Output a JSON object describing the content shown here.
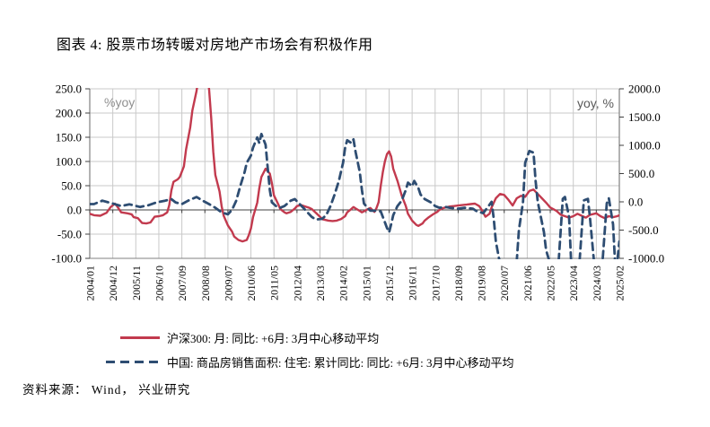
{
  "title": "图表 4: 股票市场转暖对房地产市场会有积极作用",
  "source": "资料来源： Wind， 兴业研究",
  "chart_data": {
    "type": "line",
    "grid": true,
    "legend_position": "bottom",
    "left_axis": {
      "label": "%yoy",
      "min": -100,
      "max": 250,
      "tick_labels": [
        "250.0",
        "200.0",
        "150.0",
        "100.0",
        "50.0",
        "0.0",
        "-50.0",
        "-100.0"
      ]
    },
    "right_axis": {
      "label": "yoy, %",
      "min": -1000,
      "max": 2000,
      "tick_labels": [
        "2000.0",
        "1500.0",
        "1000.0",
        "500.0",
        "0.0",
        "-500.0",
        "-1000.0"
      ]
    },
    "x_tick_labels": [
      "2004/01",
      "2004/12",
      "2005/11",
      "2006/10",
      "2007/09",
      "2008/08",
      "2009/07",
      "2010/06",
      "2011/05",
      "2012/04",
      "2013/03",
      "2014/02",
      "2015/01",
      "2015/12",
      "2016/11",
      "2017/10",
      "2018/09",
      "2019/08",
      "2020/07",
      "2021/06",
      "2022/05",
      "2023/04",
      "2024/03",
      "2025/02"
    ],
    "x_start": "2004/01",
    "x_end": "2025/02",
    "series": [
      {
        "name": "沪深300: 月: 同比: +6月: 3月中心移动平均",
        "axis": "left",
        "style": "solid",
        "color": "#c23a4e",
        "points": [
          [
            "2004/01",
            -8
          ],
          [
            "2004/03",
            -11
          ],
          [
            "2004/06",
            -12
          ],
          [
            "2004/09",
            -6
          ],
          [
            "2004/11",
            6
          ],
          [
            "2005/01",
            13
          ],
          [
            "2005/02",
            8
          ],
          [
            "2005/04",
            -5
          ],
          [
            "2005/07",
            -7
          ],
          [
            "2005/09",
            -9
          ],
          [
            "2005/10",
            -15
          ],
          [
            "2005/12",
            -17
          ],
          [
            "2006/02",
            -27
          ],
          [
            "2006/04",
            -28
          ],
          [
            "2006/06",
            -26
          ],
          [
            "2006/08",
            -14
          ],
          [
            "2006/10",
            -13
          ],
          [
            "2006/12",
            -11
          ],
          [
            "2007/02",
            -5
          ],
          [
            "2007/03",
            10
          ],
          [
            "2007/04",
            40
          ],
          [
            "2007/05",
            58
          ],
          [
            "2007/07",
            63
          ],
          [
            "2007/08",
            68
          ],
          [
            "2007/10",
            90
          ],
          [
            "2007/11",
            125
          ],
          [
            "2008/01",
            170
          ],
          [
            "2008/02",
            205
          ],
          [
            "2008/04",
            245
          ],
          [
            "2008/06",
            300
          ],
          [
            "2008/08",
            305
          ],
          [
            "2008/10",
            250
          ],
          [
            "2008/11",
            190
          ],
          [
            "2008/12",
            120
          ],
          [
            "2009/01",
            72
          ],
          [
            "2009/03",
            38
          ],
          [
            "2009/04",
            8
          ],
          [
            "2009/05",
            -12
          ],
          [
            "2009/07",
            -32
          ],
          [
            "2009/09",
            -45
          ],
          [
            "2009/10",
            -55
          ],
          [
            "2009/12",
            -62
          ],
          [
            "2010/02",
            -65
          ],
          [
            "2010/04",
            -62
          ],
          [
            "2010/05",
            -52
          ],
          [
            "2010/06",
            -38
          ],
          [
            "2010/07",
            -15
          ],
          [
            "2010/09",
            15
          ],
          [
            "2010/10",
            45
          ],
          [
            "2010/11",
            68
          ],
          [
            "2011/01",
            85
          ],
          [
            "2011/03",
            75
          ],
          [
            "2011/04",
            55
          ],
          [
            "2011/05",
            30
          ],
          [
            "2011/07",
            12
          ],
          [
            "2011/08",
            2
          ],
          [
            "2011/10",
            -5
          ],
          [
            "2011/11",
            -7
          ],
          [
            "2012/01",
            -4
          ],
          [
            "2012/03",
            3
          ],
          [
            "2012/04",
            8
          ],
          [
            "2012/06",
            10
          ],
          [
            "2012/08",
            7
          ],
          [
            "2012/10",
            4
          ],
          [
            "2012/11",
            2
          ],
          [
            "2013/01",
            -6
          ],
          [
            "2013/03",
            -14
          ],
          [
            "2013/04",
            -19
          ],
          [
            "2013/07",
            -22
          ],
          [
            "2013/09",
            -23
          ],
          [
            "2013/11",
            -22
          ],
          [
            "2014/01",
            -19
          ],
          [
            "2014/03",
            -13
          ],
          [
            "2014/04",
            -5
          ],
          [
            "2014/06",
            2
          ],
          [
            "2014/07",
            6
          ],
          [
            "2014/08",
            3
          ],
          [
            "2014/10",
            -2
          ],
          [
            "2014/11",
            -5
          ],
          [
            "2014/12",
            -3
          ],
          [
            "2015/02",
            2
          ],
          [
            "2015/03",
            4
          ],
          [
            "2015/04",
            0
          ],
          [
            "2015/05",
            -4
          ],
          [
            "2015/06",
            4
          ],
          [
            "2015/07",
            16
          ],
          [
            "2015/08",
            50
          ],
          [
            "2015/09",
            78
          ],
          [
            "2015/10",
            100
          ],
          [
            "2015/11",
            115
          ],
          [
            "2015/12",
            121
          ],
          [
            "2016/01",
            110
          ],
          [
            "2016/02",
            85
          ],
          [
            "2016/04",
            60
          ],
          [
            "2016/06",
            30
          ],
          [
            "2016/08",
            8
          ],
          [
            "2016/09",
            -8
          ],
          [
            "2016/11",
            -22
          ],
          [
            "2017/01",
            -31
          ],
          [
            "2017/02",
            -33
          ],
          [
            "2017/04",
            -28
          ],
          [
            "2017/05",
            -22
          ],
          [
            "2017/07",
            -15
          ],
          [
            "2017/09",
            -9
          ],
          [
            "2017/11",
            -4
          ],
          [
            "2017/12",
            0
          ],
          [
            "2018/02",
            4
          ],
          [
            "2018/05",
            7
          ],
          [
            "2018/07",
            8
          ],
          [
            "2018/09",
            9
          ],
          [
            "2018/11",
            10
          ],
          [
            "2019/01",
            11
          ],
          [
            "2019/03",
            12
          ],
          [
            "2019/05",
            13
          ],
          [
            "2019/07",
            8
          ],
          [
            "2019/08",
            2
          ],
          [
            "2019/10",
            -14
          ],
          [
            "2019/12",
            -8
          ],
          [
            "2020/01",
            5
          ],
          [
            "2020/03",
            24
          ],
          [
            "2020/05",
            33
          ],
          [
            "2020/07",
            31
          ],
          [
            "2020/09",
            21
          ],
          [
            "2020/11",
            9
          ],
          [
            "2021/01",
            24
          ],
          [
            "2021/03",
            29
          ],
          [
            "2021/05",
            27
          ],
          [
            "2021/07",
            39
          ],
          [
            "2021/09",
            42
          ],
          [
            "2021/11",
            33
          ],
          [
            "2022/01",
            24
          ],
          [
            "2022/03",
            15
          ],
          [
            "2022/05",
            5
          ],
          [
            "2022/08",
            -2
          ],
          [
            "2022/10",
            -10
          ],
          [
            "2022/12",
            -13
          ],
          [
            "2023/02",
            -16
          ],
          [
            "2023/04",
            -13
          ],
          [
            "2023/06",
            -8
          ],
          [
            "2023/08",
            -12
          ],
          [
            "2023/10",
            -16
          ],
          [
            "2023/12",
            -10
          ],
          [
            "2024/03",
            -7
          ],
          [
            "2024/05",
            -13
          ],
          [
            "2024/07",
            -17
          ],
          [
            "2024/09",
            -13
          ],
          [
            "2024/11",
            -15
          ],
          [
            "2025/01",
            -13
          ],
          [
            "2025/02",
            -11
          ]
        ]
      },
      {
        "name": "中国: 商品房销售面积: 住宅: 累计同比: 同比: +6月: 3月中心移动平均",
        "axis": "right",
        "style": "dashed",
        "color": "#2e4d72",
        "points": [
          [
            "2004/01",
            -40
          ],
          [
            "2004/03",
            -40
          ],
          [
            "2004/07",
            20
          ],
          [
            "2004/12",
            -30
          ],
          [
            "2005/04",
            -75
          ],
          [
            "2005/08",
            -45
          ],
          [
            "2006/01",
            -90
          ],
          [
            "2006/05",
            -60
          ],
          [
            "2006/09",
            -10
          ],
          [
            "2007/01",
            20
          ],
          [
            "2007/04",
            50
          ],
          [
            "2007/06",
            -10
          ],
          [
            "2007/09",
            -40
          ],
          [
            "2007/12",
            20
          ],
          [
            "2008/04",
            85
          ],
          [
            "2008/07",
            20
          ],
          [
            "2008/10",
            -40
          ],
          [
            "2009/01",
            -105
          ],
          [
            "2009/04",
            -185
          ],
          [
            "2009/07",
            -220
          ],
          [
            "2009/09",
            -140
          ],
          [
            "2009/11",
            20
          ],
          [
            "2010/01",
            290
          ],
          [
            "2010/03",
            530
          ],
          [
            "2010/04",
            690
          ],
          [
            "2010/06",
            820
          ],
          [
            "2010/07",
            960
          ],
          [
            "2010/09",
            1140
          ],
          [
            "2010/10",
            1040
          ],
          [
            "2010/11",
            1200
          ],
          [
            "2011/01",
            1010
          ],
          [
            "2011/02",
            610
          ],
          [
            "2011/03",
            210
          ],
          [
            "2011/04",
            -10
          ],
          [
            "2011/06",
            -75
          ],
          [
            "2011/08",
            -105
          ],
          [
            "2011/10",
            -75
          ],
          [
            "2012/01",
            20
          ],
          [
            "2012/03",
            50
          ],
          [
            "2012/05",
            -30
          ],
          [
            "2012/07",
            -105
          ],
          [
            "2012/09",
            -185
          ],
          [
            "2012/11",
            -265
          ],
          [
            "2013/01",
            -315
          ],
          [
            "2013/04",
            -300
          ],
          [
            "2013/06",
            -235
          ],
          [
            "2013/08",
            -75
          ],
          [
            "2013/10",
            130
          ],
          [
            "2013/12",
            370
          ],
          [
            "2014/02",
            690
          ],
          [
            "2014/03",
            960
          ],
          [
            "2014/04",
            1090
          ],
          [
            "2014/06",
            1040
          ],
          [
            "2014/07",
            1105
          ],
          [
            "2014/08",
            880
          ],
          [
            "2014/10",
            530
          ],
          [
            "2014/11",
            210
          ],
          [
            "2014/12",
            -30
          ],
          [
            "2015/02",
            -120
          ],
          [
            "2015/03",
            -155
          ],
          [
            "2015/05",
            -155
          ],
          [
            "2015/08",
            -170
          ],
          [
            "2015/09",
            -265
          ],
          [
            "2015/11",
            -460
          ],
          [
            "2015/12",
            -540
          ],
          [
            "2016/01",
            -395
          ],
          [
            "2016/02",
            -235
          ],
          [
            "2016/04",
            -75
          ],
          [
            "2016/06",
            20
          ],
          [
            "2016/08",
            210
          ],
          [
            "2016/09",
            340
          ],
          [
            "2016/11",
            275
          ],
          [
            "2016/12",
            370
          ],
          [
            "2017/02",
            245
          ],
          [
            "2017/03",
            130
          ],
          [
            "2017/05",
            50
          ],
          [
            "2017/08",
            -10
          ],
          [
            "2017/10",
            -75
          ],
          [
            "2017/12",
            -105
          ],
          [
            "2018/03",
            -90
          ],
          [
            "2018/05",
            -105
          ],
          [
            "2018/09",
            -120
          ],
          [
            "2018/12",
            -105
          ],
          [
            "2019/04",
            -120
          ],
          [
            "2019/06",
            -170
          ],
          [
            "2019/09",
            -200
          ],
          [
            "2019/11",
            -100
          ],
          [
            "2020/01",
            0
          ],
          [
            "2020/02",
            -300
          ],
          [
            "2020/03",
            -700
          ],
          [
            "2020/05",
            -1100
          ],
          [
            "2020/09",
            -1150
          ],
          [
            "2021/01",
            -1050
          ],
          [
            "2021/02",
            -500
          ],
          [
            "2021/04",
            0
          ],
          [
            "2021/05",
            690
          ],
          [
            "2021/07",
            900
          ],
          [
            "2021/09",
            870
          ],
          [
            "2021/10",
            372
          ],
          [
            "2021/11",
            0
          ],
          [
            "2022/02",
            -537
          ],
          [
            "2022/03",
            -856
          ],
          [
            "2022/05",
            -1100
          ],
          [
            "2022/07",
            -1150
          ],
          [
            "2022/09",
            -1050
          ],
          [
            "2022/11",
            53
          ],
          [
            "2022/12",
            85
          ],
          [
            "2023/02",
            -266
          ],
          [
            "2023/03",
            -1100
          ],
          [
            "2023/05",
            -1150
          ],
          [
            "2023/07",
            -1050
          ],
          [
            "2023/09",
            25
          ],
          [
            "2023/11",
            53
          ],
          [
            "2023/12",
            -300
          ],
          [
            "2024/02",
            -1100
          ],
          [
            "2024/04",
            -1150
          ],
          [
            "2024/06",
            -1050
          ],
          [
            "2024/08",
            -27
          ],
          [
            "2024/09",
            64
          ],
          [
            "2024/11",
            -400
          ],
          [
            "2024/12",
            -1100
          ],
          [
            "2025/01",
            -1050
          ],
          [
            "2025/02",
            -700
          ]
        ]
      }
    ],
    "colors": {
      "gridline": "#c9c9c9",
      "axis_frame": "#808080",
      "zero_axis": "#404040",
      "left_unit_label": "#909090",
      "right_unit_label": "#595959"
    }
  }
}
